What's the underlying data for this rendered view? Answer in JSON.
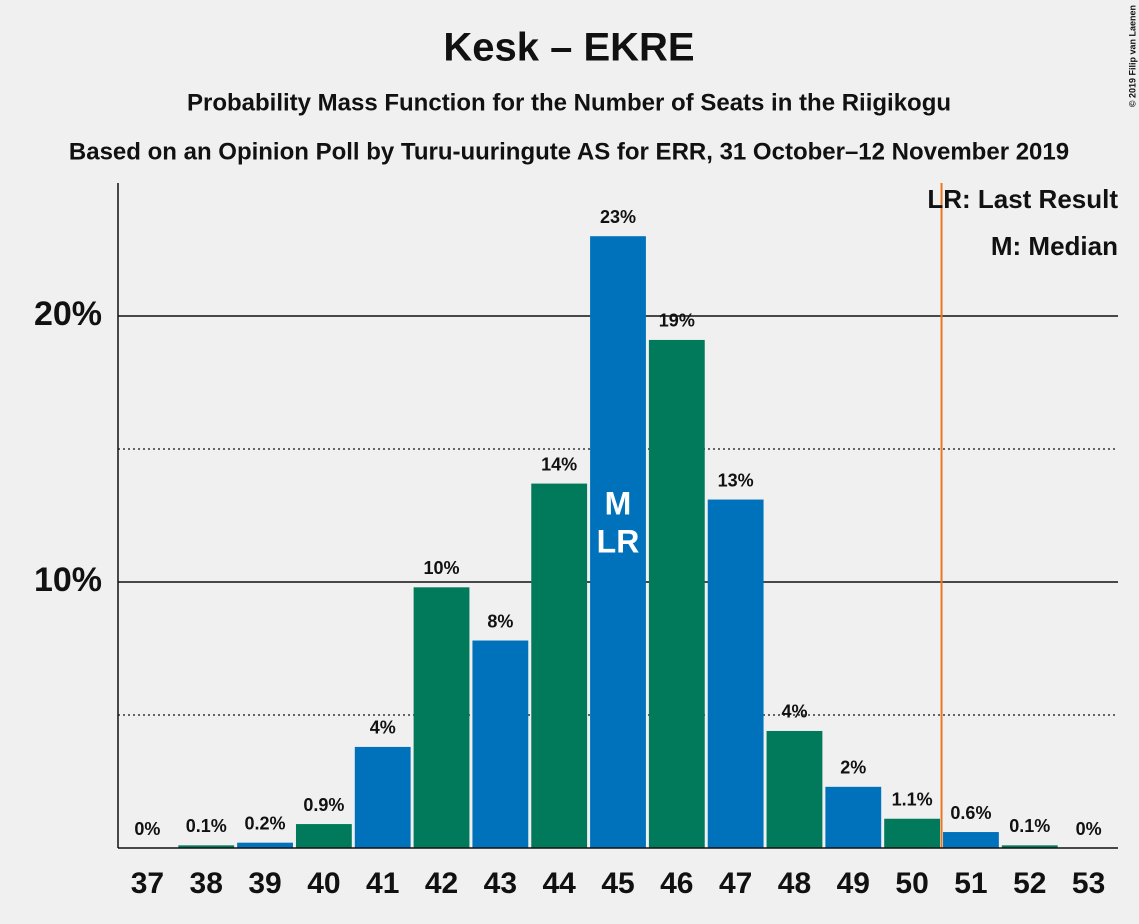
{
  "chart_data": {
    "type": "bar",
    "title": "Kesk – EKRE",
    "subtitle": "Probability Mass Function for the Number of Seats in the Riigikogu",
    "subtitle2": "Based on an Opinion Poll by Turu-uuringute AS for ERR, 31 October–12 November 2019",
    "copyright": "© 2019 Filip van Laenen",
    "categories": [
      "37",
      "38",
      "39",
      "40",
      "41",
      "42",
      "43",
      "44",
      "45",
      "46",
      "47",
      "48",
      "49",
      "50",
      "51",
      "52",
      "53"
    ],
    "values": [
      0,
      0.1,
      0.2,
      0.9,
      3.8,
      9.8,
      7.8,
      13.7,
      23,
      19.1,
      13.1,
      4.4,
      2.3,
      1.1,
      0.6,
      0.1,
      0
    ],
    "value_labels": [
      "0%",
      "0.1%",
      "0.2%",
      "0.9%",
      "4%",
      "10%",
      "8%",
      "14%",
      "23%",
      "19%",
      "13%",
      "4%",
      "2%",
      "1.1%",
      "0.6%",
      "0.1%",
      "0%"
    ],
    "colors": [
      "#0072bb",
      "#007a5a",
      "#0072bb",
      "#007a5a",
      "#0072bb",
      "#007a5a",
      "#0072bb",
      "#007a5a",
      "#0072bb",
      "#007a5a",
      "#0072bb",
      "#007a5a",
      "#0072bb",
      "#007a5a",
      "#0072bb",
      "#007a5a",
      "#0072bb"
    ],
    "ylim": [
      0,
      25
    ],
    "yticks": [
      {
        "value": 10,
        "label": "10%"
      },
      {
        "value": 20,
        "label": "20%"
      }
    ],
    "minor_yticks": [
      5,
      15
    ],
    "threshold": 51,
    "threshold_color": "#e87722",
    "markers": {
      "median": {
        "category": "45",
        "label": "M"
      },
      "last_result": {
        "category": "45",
        "label": "LR"
      }
    },
    "legend": [
      "LR: Last Result",
      "M: Median"
    ]
  }
}
